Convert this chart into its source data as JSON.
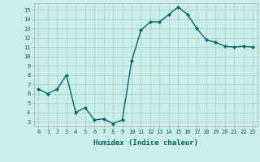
{
  "x": [
    0,
    1,
    2,
    3,
    4,
    5,
    6,
    7,
    8,
    9,
    10,
    11,
    12,
    13,
    14,
    15,
    16,
    17,
    18,
    19,
    20,
    21,
    22,
    23
  ],
  "y": [
    6.5,
    6.0,
    6.5,
    8.0,
    4.0,
    4.5,
    3.2,
    3.3,
    2.8,
    3.2,
    9.5,
    12.8,
    13.7,
    13.7,
    14.5,
    15.3,
    14.5,
    13.0,
    11.8,
    11.5,
    11.1,
    11.0,
    11.1,
    11.0
  ],
  "line_color": "#006868",
  "marker_color": "#006868",
  "bg_color": "#cceee8",
  "grid_color": "#aad8d0",
  "xlabel": "Humidex (Indice chaleur)",
  "xlim": [
    -0.5,
    23.5
  ],
  "ylim": [
    2.5,
    15.7
  ],
  "yticks": [
    3,
    4,
    5,
    6,
    7,
    8,
    9,
    10,
    11,
    12,
    13,
    14,
    15
  ],
  "xticks": [
    0,
    1,
    2,
    3,
    4,
    5,
    6,
    7,
    8,
    9,
    10,
    11,
    12,
    13,
    14,
    15,
    16,
    17,
    18,
    19,
    20,
    21,
    22,
    23
  ],
  "xtick_labels": [
    "0",
    "1",
    "2",
    "3",
    "4",
    "5",
    "6",
    "7",
    "8",
    "9",
    "10",
    "11",
    "12",
    "13",
    "14",
    "15",
    "16",
    "17",
    "18",
    "19",
    "20",
    "21",
    "22",
    "23"
  ],
  "marker_size": 2.2,
  "line_width": 1.0
}
